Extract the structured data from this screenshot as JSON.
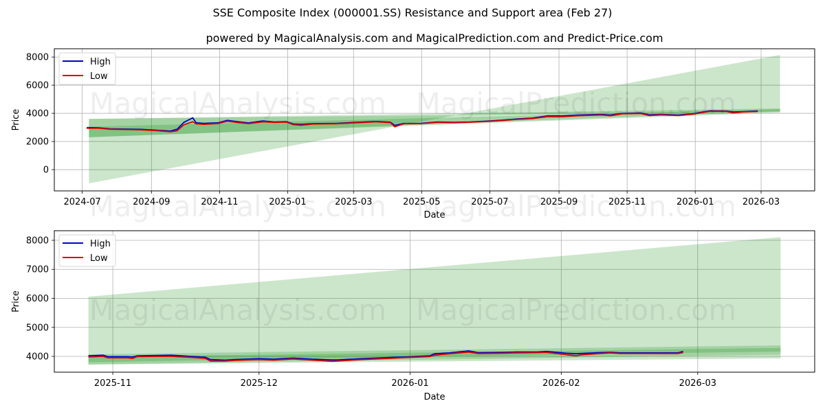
{
  "figure": {
    "title": "SSE Composite Index (000001.SS) Resistance and Support area (Feb 27)",
    "subtitle": "powered by MagicalAnalysis.com and MagicalPrediction.com and Predict-Price.com",
    "watermarks": [
      "MagicalAnalysis.com",
      "MagicalPrediction.com"
    ]
  },
  "chart_data": [
    {
      "type": "line",
      "title": "",
      "xlabel": "Date",
      "ylabel": "Price",
      "xlim": [
        "2024-06-06",
        "2026-04-18"
      ],
      "ylim": [
        -1510,
        8590
      ],
      "grid": true,
      "legend_position": "upper left",
      "legend": [
        {
          "label": "High",
          "color": "#0000cc"
        },
        {
          "label": "Low",
          "color": "#dd0000"
        }
      ],
      "xticks": [
        {
          "date": "2024-07-01",
          "label": "2024-07"
        },
        {
          "date": "2024-09-01",
          "label": "2024-09"
        },
        {
          "date": "2024-11-01",
          "label": "2024-11"
        },
        {
          "date": "2025-01-01",
          "label": "2025-01"
        },
        {
          "date": "2025-03-01",
          "label": "2025-03"
        },
        {
          "date": "2025-05-01",
          "label": "2025-05"
        },
        {
          "date": "2025-07-01",
          "label": "2025-07"
        },
        {
          "date": "2025-09-01",
          "label": "2025-09"
        },
        {
          "date": "2025-11-01",
          "label": "2025-11"
        },
        {
          "date": "2026-01-01",
          "label": "2026-01"
        },
        {
          "date": "2026-03-01",
          "label": "2026-03"
        }
      ],
      "yticks": [
        0,
        2000,
        4000,
        6000,
        8000
      ],
      "band_color": "#008000",
      "band_opacity": 0.2,
      "bands": [
        {
          "name": "resistance-support-outer",
          "start": "2024-07-07",
          "end": "2026-03-18",
          "upper": [
            3610,
            4100
          ],
          "lower": [
            -975,
            8150
          ]
        },
        {
          "name": "resistance-support-mid",
          "start": "2024-07-07",
          "end": "2026-03-18",
          "upper": [
            3600,
            4350
          ],
          "lower": [
            2300,
            4050
          ]
        },
        {
          "name": "resistance-support-inner",
          "start": "2024-07-07",
          "end": "2026-03-18",
          "upper": [
            3050,
            4300
          ],
          "lower": [
            2300,
            4150
          ]
        }
      ],
      "x": [
        "2024-07-05",
        "2024-07-15",
        "2024-07-26",
        "2024-08-09",
        "2024-08-23",
        "2024-09-06",
        "2024-09-18",
        "2024-09-24",
        "2024-09-30",
        "2024-10-08",
        "2024-10-11",
        "2024-10-18",
        "2024-10-31",
        "2024-11-08",
        "2024-11-18",
        "2024-11-27",
        "2024-12-10",
        "2024-12-20",
        "2024-12-31",
        "2025-01-06",
        "2025-01-13",
        "2025-01-24",
        "2025-02-14",
        "2025-02-28",
        "2025-03-14",
        "2025-03-21",
        "2025-04-03",
        "2025-04-07",
        "2025-04-15",
        "2025-04-30",
        "2025-05-15",
        "2025-05-30",
        "2025-06-13",
        "2025-06-27",
        "2025-07-11",
        "2025-07-25",
        "2025-08-08",
        "2025-08-22",
        "2025-09-04",
        "2025-09-18",
        "2025-10-09",
        "2025-10-17",
        "2025-10-28",
        "2025-11-13",
        "2025-11-21",
        "2025-12-01",
        "2025-12-17",
        "2025-12-31",
        "2026-01-14",
        "2026-01-29",
        "2026-02-04",
        "2026-02-13",
        "2026-02-26"
      ],
      "series": [
        {
          "name": "High",
          "color": "#0000cc",
          "values": [
            2990,
            2980,
            2900,
            2880,
            2860,
            2800,
            2740,
            2870,
            3360,
            3680,
            3330,
            3290,
            3330,
            3500,
            3400,
            3320,
            3460,
            3390,
            3410,
            3240,
            3220,
            3270,
            3290,
            3350,
            3400,
            3430,
            3370,
            3140,
            3280,
            3290,
            3390,
            3360,
            3390,
            3440,
            3510,
            3600,
            3660,
            3830,
            3820,
            3880,
            3920,
            3880,
            4000,
            4030,
            3890,
            3920,
            3880,
            3980,
            4180,
            4170,
            4090,
            4120,
            4170
          ]
        },
        {
          "name": "Low",
          "color": "#dd0000",
          "values": [
            2940,
            2950,
            2870,
            2850,
            2830,
            2770,
            2690,
            2760,
            3190,
            3400,
            3250,
            3220,
            3280,
            3440,
            3340,
            3270,
            3400,
            3360,
            3380,
            3200,
            3160,
            3240,
            3260,
            3320,
            3370,
            3400,
            3340,
            3040,
            3260,
            3270,
            3360,
            3340,
            3370,
            3420,
            3480,
            3570,
            3630,
            3770,
            3760,
            3830,
            3880,
            3830,
            3970,
            3990,
            3840,
            3890,
            3840,
            3950,
            4150,
            4140,
            4030,
            4100,
            4130
          ]
        }
      ]
    },
    {
      "type": "line",
      "title": "",
      "xlabel": "Date",
      "ylabel": "Price",
      "xlim": [
        "2025-10-20",
        "2026-03-25"
      ],
      "ylim": [
        3456,
        8331
      ],
      "grid": true,
      "legend_position": "upper left",
      "legend": [
        {
          "label": "High",
          "color": "#0000cc"
        },
        {
          "label": "Low",
          "color": "#dd0000"
        }
      ],
      "xticks": [
        {
          "date": "2025-11-01",
          "label": "2025-11"
        },
        {
          "date": "2025-12-01",
          "label": "2025-12"
        },
        {
          "date": "2026-01-01",
          "label": "2026-01"
        },
        {
          "date": "2026-02-01",
          "label": "2026-02"
        },
        {
          "date": "2026-03-01",
          "label": "2026-03"
        }
      ],
      "yticks": [
        4000,
        5000,
        6000,
        7000,
        8000
      ],
      "band_color": "#008000",
      "band_opacity": 0.2,
      "bands": [
        {
          "name": "resistance-support-outer",
          "start": "2025-10-27",
          "end": "2026-03-18",
          "upper": [
            6060,
            8110
          ],
          "lower": [
            3720,
            3930
          ]
        },
        {
          "name": "resistance-support-mid",
          "start": "2025-10-27",
          "end": "2026-03-18",
          "upper": [
            4070,
            4380
          ],
          "lower": [
            3720,
            4060
          ]
        },
        {
          "name": "resistance-support-inner",
          "start": "2025-10-27",
          "end": "2026-03-18",
          "upper": [
            3980,
            4290
          ],
          "lower": [
            3800,
            4170
          ]
        }
      ],
      "x": [
        "2025-10-27",
        "2025-10-30",
        "2025-10-31",
        "2025-11-04",
        "2025-11-05",
        "2025-11-06",
        "2025-11-10",
        "2025-11-13",
        "2025-11-17",
        "2025-11-20",
        "2025-11-21",
        "2025-11-24",
        "2025-11-26",
        "2025-12-01",
        "2025-12-04",
        "2025-12-08",
        "2025-12-12",
        "2025-12-16",
        "2025-12-17",
        "2025-12-22",
        "2025-12-29",
        "2025-12-31",
        "2026-01-05",
        "2026-01-06",
        "2026-01-09",
        "2026-01-13",
        "2026-01-15",
        "2026-01-20",
        "2026-01-23",
        "2026-01-27",
        "2026-01-29",
        "2026-02-02",
        "2026-02-04",
        "2026-02-05",
        "2026-02-09",
        "2026-02-11",
        "2026-02-13",
        "2026-02-19",
        "2026-02-25",
        "2026-02-26"
      ],
      "series": [
        {
          "name": "High",
          "color": "#0000cc",
          "values": [
            4020,
            4040,
            3990,
            3990,
            3980,
            4020,
            4030,
            4040,
            4000,
            3970,
            3890,
            3870,
            3890,
            3920,
            3900,
            3940,
            3900,
            3880,
            3880,
            3920,
            3970,
            3980,
            4020,
            4090,
            4120,
            4190,
            4130,
            4140,
            4150,
            4150,
            4170,
            4110,
            4090,
            4100,
            4130,
            4140,
            4120,
            4120,
            4120,
            4170
          ]
        },
        {
          "name": "Low",
          "color": "#dd0000",
          "values": [
            3980,
            4000,
            3950,
            3950,
            3930,
            3990,
            4000,
            4000,
            3970,
            3930,
            3840,
            3840,
            3860,
            3890,
            3870,
            3910,
            3870,
            3830,
            3840,
            3890,
            3940,
            3960,
            3990,
            4040,
            4090,
            4150,
            4100,
            4110,
            4120,
            4130,
            4140,
            4060,
            4020,
            4050,
            4100,
            4120,
            4100,
            4100,
            4100,
            4130
          ]
        }
      ]
    }
  ]
}
